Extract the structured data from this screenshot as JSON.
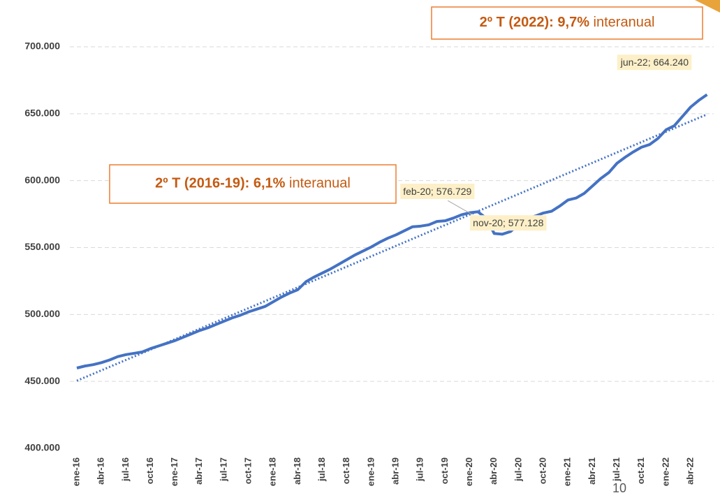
{
  "chart_data": {
    "type": "line",
    "categories": [
      "ene-16",
      null,
      null,
      "abr-16",
      null,
      null,
      "jul-16",
      null,
      null,
      "oct-16",
      null,
      null,
      "ene-17",
      null,
      null,
      "abr-17",
      null,
      null,
      "jul-17",
      null,
      null,
      "oct-17",
      null,
      null,
      "ene-18",
      null,
      null,
      "abr-18",
      null,
      null,
      "jul-18",
      null,
      null,
      "oct-18",
      null,
      null,
      "ene-19",
      null,
      null,
      "abr-19",
      null,
      null,
      "jul-19",
      null,
      null,
      "oct-19",
      null,
      null,
      "ene-20",
      null,
      null,
      "abr-20",
      null,
      null,
      "jul-20",
      null,
      null,
      "oct-20",
      null,
      null,
      "ene-21",
      null,
      null,
      "abr-21",
      null,
      null,
      "jul-21",
      null,
      null,
      "oct-21",
      null,
      null,
      "ene-22",
      null,
      null,
      "abr-22",
      null,
      null
    ],
    "series": [
      {
        "color": "#4472c4",
        "values": [
          460000,
          461500,
          462500,
          464000,
          466000,
          468500,
          470000,
          471000,
          472000,
          474500,
          476500,
          478500,
          480500,
          483000,
          485500,
          488000,
          490000,
          492500,
          495000,
          497500,
          499500,
          502000,
          504000,
          506000,
          509500,
          513000,
          516000,
          518500,
          524500,
          528000,
          531000,
          534000,
          537500,
          541000,
          544500,
          547500,
          550500,
          554000,
          557000,
          559500,
          562500,
          565500,
          566000,
          567000,
          569500,
          570000,
          572000,
          574500,
          576000,
          576729,
          572000,
          560500,
          560000,
          562000,
          567500,
          571500,
          573500,
          575800,
          577128,
          581000,
          585500,
          587000,
          590500,
          596000,
          601500,
          606000,
          613000,
          617500,
          621500,
          625000,
          627000,
          631500,
          638000,
          641000,
          648000,
          655000,
          660000,
          664240
        ],
        "value_labels": [
          null,
          null,
          null,
          null,
          null,
          null,
          null,
          null,
          null,
          null,
          null,
          null,
          null,
          null,
          null,
          null,
          null,
          null,
          null,
          null,
          null,
          null,
          null,
          null,
          null,
          null,
          null,
          null,
          null,
          null,
          null,
          null,
          null,
          null,
          null,
          null,
          null,
          null,
          null,
          null,
          null,
          null,
          null,
          null,
          null,
          null,
          null,
          null,
          null,
          "feb-20; 576.729",
          null,
          null,
          null,
          null,
          null,
          null,
          null,
          null,
          "nov-20; 577.128",
          null,
          null,
          null,
          null,
          null,
          null,
          null,
          null,
          null,
          null,
          null,
          null,
          null,
          null,
          null,
          null,
          null,
          null,
          "jun-22; 664.240"
        ]
      }
    ],
    "trend": {
      "color": "#4472c4",
      "values": [
        450500,
        649500
      ]
    },
    "ylim": [
      400000,
      700000
    ],
    "yticks": [
      {
        "value": 400000,
        "label": "400.000"
      },
      {
        "value": 450000,
        "label": "450.000"
      },
      {
        "value": 500000,
        "label": "500.000"
      },
      {
        "value": 550000,
        "label": "550.000"
      },
      {
        "value": 600000,
        "label": "600.000"
      },
      {
        "value": 650000,
        "label": "650.000"
      },
      {
        "value": 700000,
        "label": "700.000"
      }
    ],
    "grid": true,
    "annotations": [
      {
        "bold": "2º T (2022): 9,7%",
        "text": "interanual"
      },
      {
        "bold": "2º T (2016-19): 6,1%",
        "text": "interanual"
      }
    ],
    "page_number": "10"
  }
}
